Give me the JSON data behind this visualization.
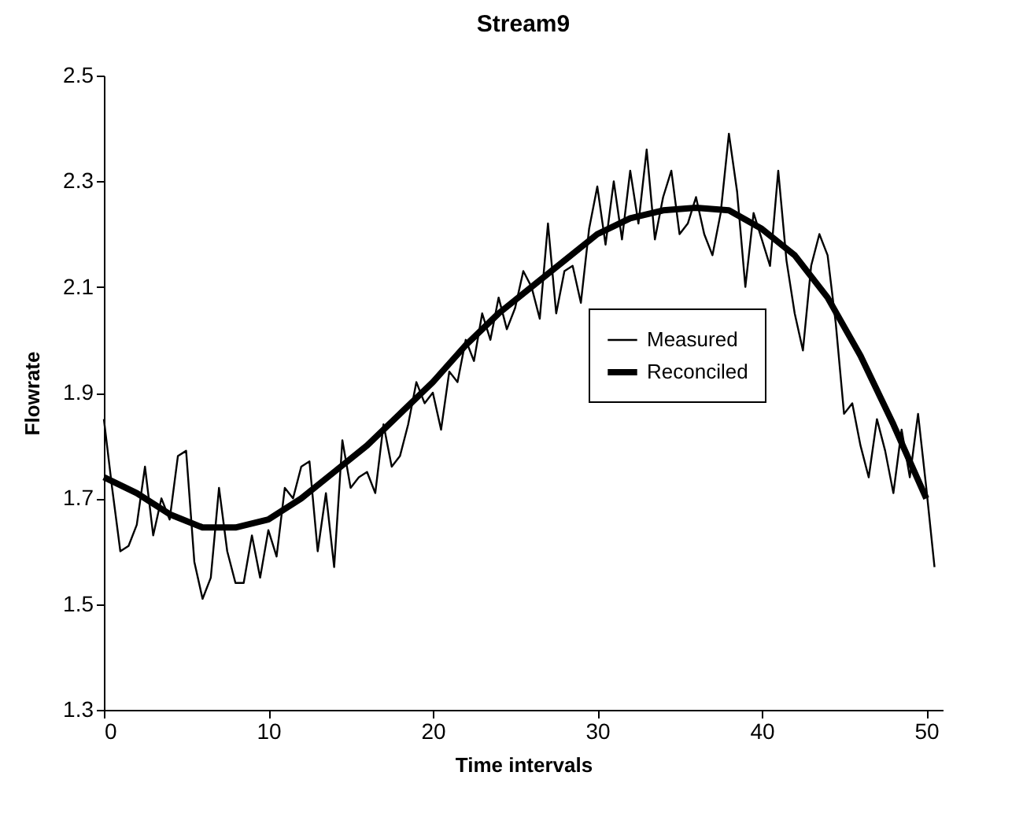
{
  "chart_data": {
    "type": "line",
    "title": "Stream9",
    "xlabel": "Time intervals",
    "ylabel": "Flowrate",
    "xlim": [
      0,
      51
    ],
    "xticks": [
      0,
      10,
      20,
      30,
      40,
      50
    ],
    "ylim": [
      1.3,
      2.5
    ],
    "yticks": [
      1.3,
      1.5,
      1.7,
      1.9,
      2.1,
      2.3,
      2.5
    ],
    "grid": false,
    "legend": "right",
    "marker": "none",
    "line_style": "solid",
    "series": [
      {
        "name": "Measured",
        "color": "#000000",
        "x": [
          0,
          0.5,
          1,
          1.5,
          2,
          2.5,
          3,
          3.5,
          4,
          4.5,
          5,
          5.5,
          6,
          6.5,
          7,
          7.5,
          8,
          8.5,
          9,
          9.5,
          10,
          10.5,
          11,
          11.5,
          12,
          12.5,
          13,
          13.5,
          14,
          14.5,
          15,
          15.5,
          16,
          16.5,
          17,
          17.5,
          18,
          18.5,
          19,
          19.5,
          20,
          20.5,
          21,
          21.5,
          22,
          22.5,
          23,
          23.5,
          24,
          24.5,
          25,
          25.5,
          26,
          26.5,
          27,
          27.5,
          28,
          28.5,
          29,
          29.5,
          30,
          30.5,
          31,
          31.5,
          32,
          32.5,
          33,
          33.5,
          34,
          34.5,
          35,
          35.5,
          36,
          36.5,
          37,
          37.5,
          38,
          38.5,
          39,
          39.5,
          40,
          40.5,
          41,
          41.5,
          42,
          42.5,
          43,
          43.5,
          44,
          44.5,
          45,
          45.5,
          46,
          46.5,
          47,
          47.5,
          48,
          48.5,
          49,
          49.5,
          50,
          50.5
        ],
        "values": [
          1.85,
          1.72,
          1.6,
          1.61,
          1.65,
          1.76,
          1.63,
          1.7,
          1.66,
          1.78,
          1.79,
          1.58,
          1.51,
          1.55,
          1.72,
          1.6,
          1.54,
          1.54,
          1.63,
          1.55,
          1.64,
          1.59,
          1.72,
          1.7,
          1.76,
          1.77,
          1.6,
          1.71,
          1.57,
          1.81,
          1.72,
          1.74,
          1.75,
          1.71,
          1.84,
          1.76,
          1.78,
          1.84,
          1.92,
          1.88,
          1.9,
          1.83,
          1.94,
          1.92,
          2.0,
          1.96,
          2.05,
          2.0,
          2.08,
          2.02,
          2.06,
          2.13,
          2.1,
          2.04,
          2.22,
          2.05,
          2.13,
          2.14,
          2.07,
          2.21,
          2.29,
          2.18,
          2.3,
          2.19,
          2.32,
          2.22,
          2.36,
          2.19,
          2.27,
          2.32,
          2.2,
          2.22,
          2.27,
          2.2,
          2.16,
          2.24,
          2.39,
          2.28,
          2.1,
          2.24,
          2.19,
          2.14,
          2.32,
          2.15,
          2.05,
          1.98,
          2.14,
          2.2,
          2.16,
          2.03,
          1.86,
          1.88,
          1.8,
          1.74,
          1.85,
          1.79,
          1.71,
          1.83,
          1.74,
          1.86,
          1.72,
          1.57
        ]
      },
      {
        "name": "Reconciled",
        "color": "#000000",
        "x": [
          0,
          2,
          4,
          6,
          8,
          10,
          12,
          14,
          16,
          18,
          20,
          22,
          24,
          26,
          28,
          30,
          32,
          34,
          36,
          38,
          40,
          42,
          44,
          46,
          48,
          50
        ],
        "values": [
          1.74,
          1.71,
          1.67,
          1.645,
          1.645,
          1.66,
          1.7,
          1.75,
          1.8,
          1.86,
          1.92,
          1.99,
          2.05,
          2.1,
          2.15,
          2.2,
          2.23,
          2.245,
          2.25,
          2.245,
          2.21,
          2.16,
          2.08,
          1.97,
          1.84,
          1.7
        ]
      }
    ]
  }
}
